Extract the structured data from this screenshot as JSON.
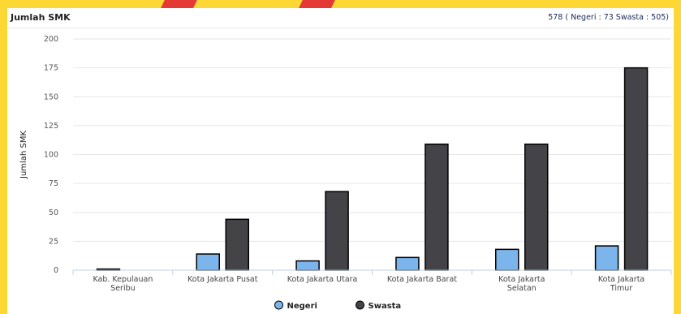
{
  "panel": {
    "title": "Jumlah SMK",
    "summary": "578 ( Negeri : 73 Swasta : 505)"
  },
  "colors": {
    "page_background": "#fdd835",
    "accent_stripe": "#e53935",
    "negeri": "#7cb5ec",
    "swasta": "#434348"
  },
  "chart_data": {
    "type": "bar",
    "title": "",
    "ylabel": "Jumlah SMK",
    "xlabel": "",
    "ylim": [
      0,
      200
    ],
    "yticks": [
      0,
      25,
      50,
      75,
      100,
      125,
      150,
      175,
      200
    ],
    "grid": true,
    "legend_position": "bottom-center",
    "categories": [
      [
        "Kab. Kepulauan",
        "Seribu"
      ],
      [
        "Kota Jakarta Pusat"
      ],
      [
        "Kota Jakarta Utara"
      ],
      [
        "Kota Jakarta Barat"
      ],
      [
        "Kota Jakarta",
        "Selatan"
      ],
      [
        "Kota Jakarta",
        "Timur"
      ]
    ],
    "series": [
      {
        "name": "Negeri",
        "color": "#7cb5ec",
        "values": [
          1,
          14,
          8,
          11,
          18,
          21
        ]
      },
      {
        "name": "Swasta",
        "color": "#434348",
        "values": [
          0,
          44,
          68,
          109,
          109,
          175
        ]
      }
    ]
  }
}
